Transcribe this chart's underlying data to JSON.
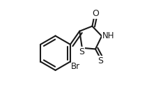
{
  "background_color": "#ffffff",
  "line_color": "#1a1a1a",
  "line_width": 1.5,
  "font_size": 8.5,
  "fig_width": 2.24,
  "fig_height": 1.58,
  "dpi": 100,
  "xlim": [
    -0.05,
    1.05
  ],
  "ylim": [
    -0.05,
    1.05
  ]
}
